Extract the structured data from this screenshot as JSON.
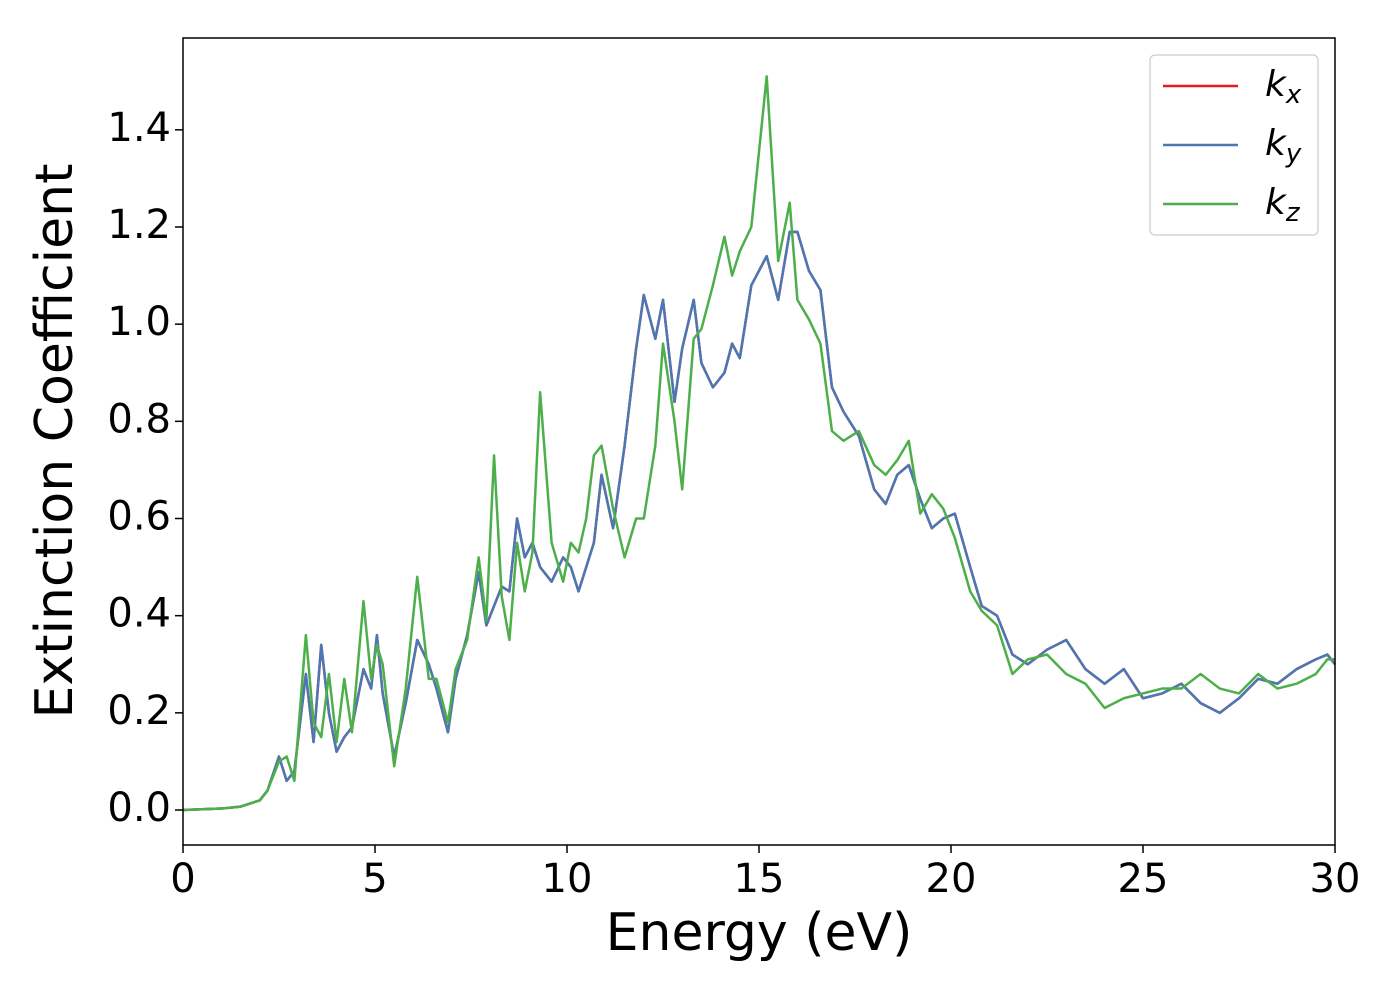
{
  "chart_data": {
    "type": "line",
    "xlabel": "Energy (eV)",
    "ylabel": "Extinction Coefficient",
    "xlim": [
      0,
      30
    ],
    "ylim": [
      -0.072,
      1.589
    ],
    "xticks": [
      0,
      5,
      10,
      15,
      20,
      25,
      30
    ],
    "yticks": [
      {
        "value": 0,
        "label": "0.0"
      },
      {
        "value": 0.2,
        "label": "0.2"
      },
      {
        "value": 0.4,
        "label": "0.4"
      },
      {
        "value": 0.6,
        "label": "0.6"
      },
      {
        "value": 0.8,
        "label": "0.8"
      },
      {
        "value": 1.0,
        "label": "1.0"
      },
      {
        "value": 1.2,
        "label": "1.2"
      },
      {
        "value": 1.4,
        "label": "1.4"
      }
    ],
    "legend": "upper right",
    "x": [
      0,
      1,
      1.5,
      2,
      2.2,
      2.5,
      2.7,
      2.9,
      3.2,
      3.4,
      3.6,
      3.8,
      4.0,
      4.2,
      4.4,
      4.7,
      4.9,
      5.05,
      5.2,
      5.5,
      5.8,
      6.1,
      6.4,
      6.6,
      6.9,
      7.1,
      7.4,
      7.7,
      7.9,
      8.1,
      8.3,
      8.5,
      8.7,
      8.9,
      9.1,
      9.3,
      9.6,
      9.9,
      10.1,
      10.3,
      10.5,
      10.7,
      10.9,
      11.2,
      11.5,
      11.8,
      12.0,
      12.3,
      12.5,
      12.8,
      13.0,
      13.3,
      13.5,
      13.8,
      14.1,
      14.3,
      14.5,
      14.8,
      15.2,
      15.5,
      15.8,
      16.0,
      16.3,
      16.6,
      16.9,
      17.2,
      17.6,
      18.0,
      18.3,
      18.6,
      18.9,
      19.2,
      19.5,
      19.8,
      20.1,
      20.5,
      20.8,
      21.2,
      21.6,
      22.0,
      22.5,
      23.0,
      23.5,
      24.0,
      24.5,
      25.0,
      25.5,
      26.0,
      26.5,
      27.0,
      27.5,
      28.0,
      28.5,
      29.0,
      29.5,
      29.8,
      30
    ],
    "series": [
      {
        "name": "kx",
        "color": "#e41a1c",
        "values": [
          0,
          0.003,
          0.007,
          0.02,
          0.04,
          0.11,
          0.06,
          0.08,
          0.28,
          0.14,
          0.34,
          0.2,
          0.12,
          0.15,
          0.17,
          0.29,
          0.25,
          0.36,
          0.24,
          0.11,
          0.22,
          0.35,
          0.3,
          0.25,
          0.16,
          0.27,
          0.36,
          0.49,
          0.38,
          0.42,
          0.46,
          0.45,
          0.6,
          0.52,
          0.55,
          0.5,
          0.47,
          0.52,
          0.5,
          0.45,
          0.5,
          0.55,
          0.69,
          0.58,
          0.75,
          0.95,
          1.06,
          0.97,
          1.05,
          0.84,
          0.95,
          1.05,
          0.92,
          0.87,
          0.9,
          0.96,
          0.93,
          1.08,
          1.14,
          1.05,
          1.19,
          1.19,
          1.11,
          1.07,
          0.87,
          0.82,
          0.77,
          0.66,
          0.63,
          0.69,
          0.71,
          0.64,
          0.58,
          0.6,
          0.61,
          0.5,
          0.42,
          0.4,
          0.32,
          0.3,
          0.33,
          0.35,
          0.29,
          0.26,
          0.29,
          0.23,
          0.24,
          0.26,
          0.22,
          0.2,
          0.23,
          0.27,
          0.26,
          0.29,
          0.31,
          0.32,
          0.3
        ]
      },
      {
        "name": "ky",
        "color": "#4a78b5",
        "values": [
          0,
          0.003,
          0.007,
          0.02,
          0.04,
          0.11,
          0.06,
          0.08,
          0.28,
          0.14,
          0.34,
          0.2,
          0.12,
          0.15,
          0.17,
          0.29,
          0.25,
          0.36,
          0.24,
          0.11,
          0.22,
          0.35,
          0.3,
          0.25,
          0.16,
          0.27,
          0.36,
          0.49,
          0.38,
          0.42,
          0.46,
          0.45,
          0.6,
          0.52,
          0.55,
          0.5,
          0.47,
          0.52,
          0.5,
          0.45,
          0.5,
          0.55,
          0.69,
          0.58,
          0.75,
          0.95,
          1.06,
          0.97,
          1.05,
          0.84,
          0.95,
          1.05,
          0.92,
          0.87,
          0.9,
          0.96,
          0.93,
          1.08,
          1.14,
          1.05,
          1.19,
          1.19,
          1.11,
          1.07,
          0.87,
          0.82,
          0.77,
          0.66,
          0.63,
          0.69,
          0.71,
          0.64,
          0.58,
          0.6,
          0.61,
          0.5,
          0.42,
          0.4,
          0.32,
          0.3,
          0.33,
          0.35,
          0.29,
          0.26,
          0.29,
          0.23,
          0.24,
          0.26,
          0.22,
          0.2,
          0.23,
          0.27,
          0.26,
          0.29,
          0.31,
          0.32,
          0.3
        ]
      },
      {
        "name": "kz",
        "color": "#4daf4a",
        "values": [
          0,
          0.003,
          0.007,
          0.02,
          0.04,
          0.1,
          0.11,
          0.06,
          0.36,
          0.18,
          0.15,
          0.28,
          0.14,
          0.27,
          0.16,
          0.43,
          0.27,
          0.34,
          0.3,
          0.09,
          0.25,
          0.48,
          0.27,
          0.27,
          0.18,
          0.29,
          0.35,
          0.52,
          0.39,
          0.73,
          0.44,
          0.35,
          0.55,
          0.45,
          0.53,
          0.86,
          0.55,
          0.47,
          0.55,
          0.53,
          0.6,
          0.73,
          0.75,
          0.62,
          0.52,
          0.6,
          0.6,
          0.75,
          0.96,
          0.8,
          0.66,
          0.97,
          0.99,
          1.08,
          1.18,
          1.1,
          1.15,
          1.2,
          1.51,
          1.13,
          1.25,
          1.05,
          1.01,
          0.96,
          0.78,
          0.76,
          0.78,
          0.71,
          0.69,
          0.72,
          0.76,
          0.61,
          0.65,
          0.62,
          0.56,
          0.45,
          0.41,
          0.38,
          0.28,
          0.31,
          0.32,
          0.28,
          0.26,
          0.21,
          0.23,
          0.24,
          0.25,
          0.25,
          0.28,
          0.25,
          0.24,
          0.28,
          0.25,
          0.26,
          0.28,
          0.31,
          0.31
        ]
      }
    ]
  }
}
